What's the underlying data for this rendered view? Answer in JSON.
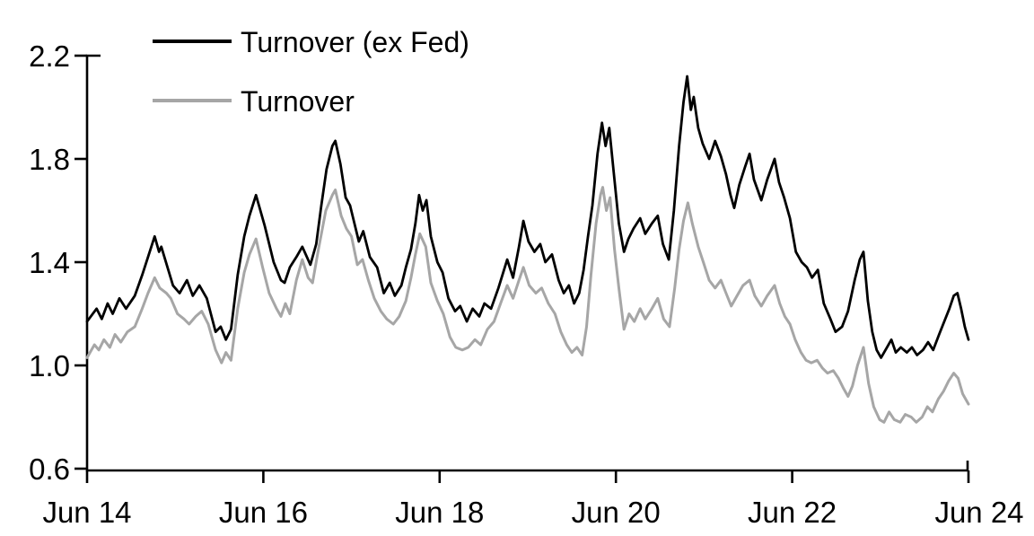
{
  "chart_data": {
    "type": "line",
    "title": "",
    "xlabel": "",
    "ylabel": "",
    "x_unit": "months since Jun 2014",
    "xlim": [
      0,
      120
    ],
    "ylim": [
      0.6,
      2.2
    ],
    "grid": false,
    "legend_position": "top-left",
    "x_ticks": {
      "positions": [
        0,
        24,
        48,
        72,
        96,
        120
      ],
      "labels": [
        "Jun 14",
        "Jun 16",
        "Jun 18",
        "Jun 20",
        "Jun 22",
        "Jun 24"
      ]
    },
    "y_ticks": {
      "positions": [
        2.2,
        1.8,
        1.4,
        1.0,
        0.6
      ],
      "labels": [
        "2.2",
        "1.8",
        "1.4",
        "1.0",
        "0.6"
      ]
    },
    "axis_color": "#000000",
    "series": [
      {
        "name": "Turnover (ex Fed)",
        "color": "#000000",
        "x": [
          0,
          1.3,
          2,
          2.8,
          3.5,
          4.4,
          5.3,
          6.5,
          7.5,
          8.3,
          9.2,
          9.8,
          10.1,
          11.7,
          12.6,
          13.6,
          14.4,
          15.3,
          16.3,
          17.5,
          18.2,
          18.9,
          19.6,
          20.5,
          21.4,
          22.1,
          23,
          23.6,
          24.2,
          25.4,
          26.4,
          26.9,
          27.6,
          28.5,
          29.3,
          30.4,
          31.2,
          31.9,
          32.6,
          33.4,
          33.8,
          34.5,
          35.2,
          35.8,
          36.4,
          37,
          37.6,
          38.5,
          39.5,
          40.4,
          41.2,
          41.9,
          42.8,
          43.4,
          44.1,
          44.7,
          45.2,
          45.7,
          46.2,
          46.8,
          47.7,
          48.4,
          49.2,
          50.1,
          50.8,
          51.7,
          52.5,
          53.4,
          54.1,
          55,
          56,
          57.2,
          58,
          58.8,
          59.4,
          60.1,
          60.9,
          61.7,
          62.4,
          63.3,
          64.2,
          64.9,
          65.6,
          66.3,
          67,
          67.6,
          68.2,
          68.8,
          69.5,
          70.1,
          70.6,
          71.1,
          71.7,
          72.4,
          73.1,
          73.7,
          74.4,
          75.3,
          76,
          76.9,
          77.7,
          78.4,
          79.2,
          79.9,
          80.6,
          81.2,
          81.7,
          82.2,
          82.6,
          83.2,
          83.8,
          84.7,
          85.5,
          86.3,
          87,
          87.6,
          88.1,
          88.8,
          89.6,
          90.2,
          90.8,
          91.8,
          92.6,
          93.6,
          94.2,
          94.9,
          95.7,
          96.5,
          97.3,
          98,
          98.7,
          99.5,
          100.3,
          101.2,
          101.9,
          102.8,
          103.6,
          104.5,
          105.2,
          105.7,
          106.3,
          106.9,
          107.5,
          108.1,
          108.9,
          109.5,
          110.1,
          110.8,
          111.6,
          112.3,
          113,
          113.8,
          114.5,
          115.2,
          116,
          116.7,
          117.4,
          118,
          118.5,
          119,
          119.5,
          120
        ],
        "y": [
          1.17,
          1.22,
          1.18,
          1.24,
          1.2,
          1.26,
          1.22,
          1.27,
          1.35,
          1.42,
          1.5,
          1.44,
          1.46,
          1.31,
          1.28,
          1.33,
          1.27,
          1.31,
          1.26,
          1.13,
          1.15,
          1.1,
          1.14,
          1.35,
          1.5,
          1.58,
          1.66,
          1.6,
          1.54,
          1.4,
          1.33,
          1.32,
          1.38,
          1.42,
          1.46,
          1.39,
          1.47,
          1.62,
          1.76,
          1.85,
          1.87,
          1.78,
          1.65,
          1.62,
          1.55,
          1.48,
          1.52,
          1.42,
          1.38,
          1.28,
          1.32,
          1.27,
          1.31,
          1.38,
          1.45,
          1.55,
          1.66,
          1.6,
          1.64,
          1.5,
          1.4,
          1.36,
          1.26,
          1.21,
          1.23,
          1.17,
          1.22,
          1.19,
          1.24,
          1.22,
          1.3,
          1.41,
          1.34,
          1.46,
          1.56,
          1.48,
          1.44,
          1.47,
          1.4,
          1.43,
          1.33,
          1.28,
          1.31,
          1.24,
          1.28,
          1.37,
          1.5,
          1.62,
          1.82,
          1.94,
          1.85,
          1.92,
          1.75,
          1.55,
          1.44,
          1.49,
          1.53,
          1.57,
          1.51,
          1.55,
          1.58,
          1.47,
          1.41,
          1.6,
          1.85,
          2.02,
          2.12,
          1.99,
          2.04,
          1.92,
          1.86,
          1.8,
          1.87,
          1.81,
          1.74,
          1.66,
          1.61,
          1.7,
          1.77,
          1.82,
          1.72,
          1.64,
          1.72,
          1.8,
          1.71,
          1.65,
          1.57,
          1.44,
          1.4,
          1.38,
          1.34,
          1.37,
          1.24,
          1.18,
          1.13,
          1.15,
          1.21,
          1.33,
          1.41,
          1.44,
          1.25,
          1.13,
          1.06,
          1.03,
          1.07,
          1.1,
          1.05,
          1.07,
          1.05,
          1.07,
          1.04,
          1.06,
          1.09,
          1.06,
          1.12,
          1.17,
          1.22,
          1.27,
          1.28,
          1.22,
          1.15,
          1.1
        ]
      },
      {
        "name": "Turnover",
        "color": "#a6a6a6",
        "x": [
          0,
          1,
          1.6,
          2.3,
          3.1,
          3.8,
          4.6,
          5.5,
          6.5,
          7.5,
          8.3,
          9.2,
          9.9,
          10.8,
          11.4,
          12.3,
          13.2,
          13.9,
          14.8,
          15.6,
          16.5,
          17.5,
          18.3,
          18.9,
          19.6,
          20.5,
          21.4,
          22.1,
          23,
          23.9,
          24.8,
          25.8,
          26.4,
          27,
          27.6,
          28.5,
          29.3,
          30.1,
          30.7,
          31.5,
          32.5,
          33.4,
          33.8,
          34.6,
          35.3,
          36,
          36.8,
          37.5,
          38.3,
          39.1,
          40,
          40.8,
          41.7,
          42.5,
          43.4,
          44.1,
          44.7,
          45.3,
          46.1,
          46.8,
          47.7,
          48.5,
          49.4,
          50.2,
          51.1,
          51.9,
          52.8,
          53.6,
          54.5,
          55.4,
          56.3,
          57.2,
          58,
          58.8,
          59.4,
          60.2,
          61.1,
          61.9,
          62.8,
          63.7,
          64.5,
          65.3,
          66,
          66.7,
          67.4,
          68,
          68.6,
          69.3,
          69.9,
          70.2,
          70.7,
          71.2,
          71.8,
          72.4,
          73.1,
          73.8,
          74.5,
          75.3,
          76,
          76.9,
          77.7,
          78.5,
          79.3,
          80,
          80.6,
          81.2,
          81.8,
          82.4,
          83.2,
          83.9,
          84.7,
          85.5,
          86.3,
          87,
          87.7,
          88.5,
          89.3,
          90.2,
          90.9,
          91.8,
          92.6,
          93.6,
          94.3,
          95,
          95.7,
          96.4,
          97.2,
          97.9,
          98.6,
          99.4,
          100.1,
          100.8,
          101.6,
          102.3,
          103,
          103.6,
          104.2,
          104.9,
          105.7,
          106.4,
          107.1,
          107.9,
          108.5,
          109.2,
          109.9,
          110.7,
          111.4,
          112.2,
          112.9,
          113.7,
          114.4,
          115.1,
          115.9,
          116.6,
          117.3,
          118,
          118.6,
          119.2,
          120
        ],
        "y": [
          1.03,
          1.08,
          1.06,
          1.1,
          1.07,
          1.12,
          1.09,
          1.13,
          1.15,
          1.22,
          1.28,
          1.34,
          1.3,
          1.28,
          1.26,
          1.2,
          1.18,
          1.16,
          1.19,
          1.21,
          1.16,
          1.06,
          1.01,
          1.05,
          1.02,
          1.22,
          1.36,
          1.43,
          1.49,
          1.38,
          1.28,
          1.22,
          1.19,
          1.24,
          1.2,
          1.33,
          1.41,
          1.34,
          1.32,
          1.45,
          1.6,
          1.66,
          1.68,
          1.58,
          1.53,
          1.5,
          1.39,
          1.41,
          1.33,
          1.26,
          1.21,
          1.18,
          1.16,
          1.19,
          1.25,
          1.34,
          1.43,
          1.51,
          1.46,
          1.32,
          1.25,
          1.2,
          1.11,
          1.07,
          1.06,
          1.07,
          1.1,
          1.08,
          1.14,
          1.17,
          1.24,
          1.31,
          1.26,
          1.33,
          1.38,
          1.31,
          1.28,
          1.3,
          1.24,
          1.2,
          1.13,
          1.08,
          1.05,
          1.07,
          1.04,
          1.15,
          1.35,
          1.55,
          1.66,
          1.69,
          1.6,
          1.65,
          1.45,
          1.3,
          1.14,
          1.2,
          1.17,
          1.22,
          1.18,
          1.22,
          1.26,
          1.18,
          1.15,
          1.3,
          1.45,
          1.56,
          1.63,
          1.55,
          1.46,
          1.4,
          1.33,
          1.3,
          1.33,
          1.28,
          1.23,
          1.27,
          1.31,
          1.33,
          1.27,
          1.23,
          1.27,
          1.31,
          1.24,
          1.19,
          1.16,
          1.1,
          1.05,
          1.02,
          1.01,
          1.02,
          0.99,
          0.97,
          0.98,
          0.95,
          0.91,
          0.88,
          0.92,
          1.0,
          1.07,
          0.93,
          0.84,
          0.79,
          0.78,
          0.82,
          0.79,
          0.78,
          0.81,
          0.8,
          0.78,
          0.8,
          0.84,
          0.82,
          0.87,
          0.9,
          0.94,
          0.97,
          0.95,
          0.89,
          0.85
        ]
      }
    ]
  }
}
